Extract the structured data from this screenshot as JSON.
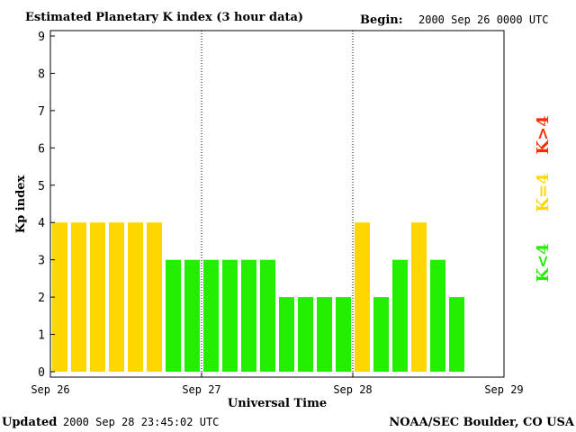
{
  "header": {
    "title": "Estimated Planetary K index (3 hour data)",
    "begin_label": "Begin:",
    "begin_value": "2000 Sep 26 0000 UTC"
  },
  "footer": {
    "updated_label": "Updated",
    "updated_value": "2000 Sep 28 23:45:02 UTC",
    "source": "NOAA/SEC Boulder, CO USA"
  },
  "legend": {
    "high": {
      "label": "K>4",
      "color": "#ff2a00"
    },
    "mid": {
      "label": "K=4",
      "color": "#ffd700"
    },
    "low": {
      "label": "K<4",
      "color": "#22ee00"
    }
  },
  "chart_data": {
    "type": "bar",
    "title": "Estimated Planetary K index (3 hour data)",
    "xlabel": "Universal Time",
    "ylabel": "Kp index",
    "ylim": [
      0,
      9
    ],
    "yticks": [
      "0",
      "1",
      "2",
      "3",
      "4",
      "5",
      "6",
      "7",
      "8",
      "9"
    ],
    "xticks": [
      "Sep 26",
      "Sep 27",
      "Sep 28",
      "Sep 29"
    ],
    "interval_hours": 3,
    "values": [
      4,
      4,
      4,
      4,
      4,
      4,
      3,
      3,
      3,
      3,
      3,
      3,
      2,
      2,
      2,
      2,
      4,
      2,
      3,
      4,
      3,
      2
    ],
    "colors": {
      "below4": "#22ee00",
      "equal4": "#ffd700",
      "above4": "#ff2a00"
    },
    "day_separators": [
      "Sep 27",
      "Sep 28"
    ],
    "grid": false
  }
}
